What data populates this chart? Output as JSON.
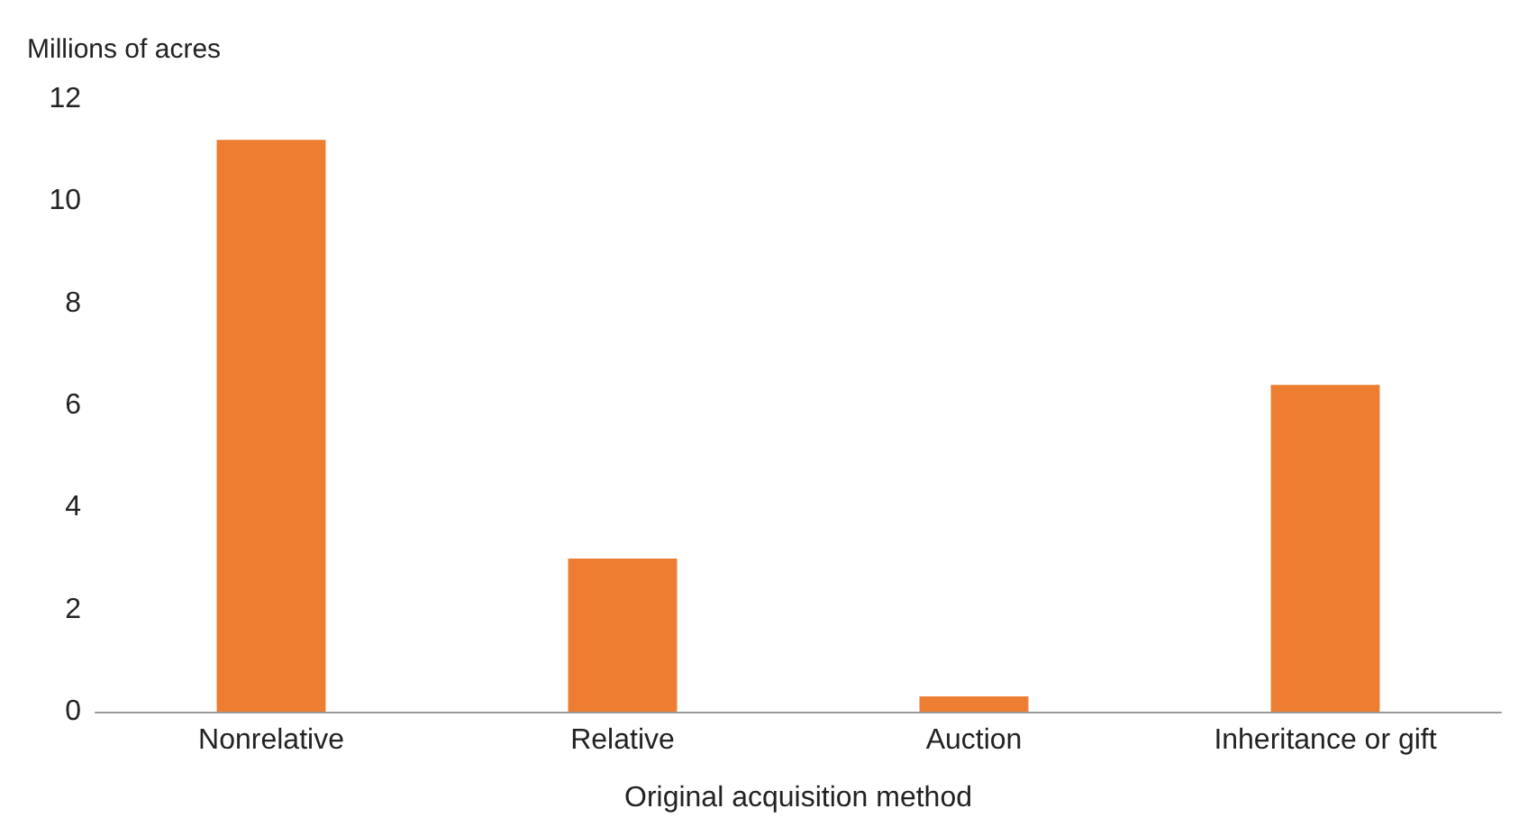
{
  "chart_data": {
    "type": "bar",
    "ylabel": "Millions of acres",
    "xlabel": "Original acquisition method",
    "categories": [
      "Nonrelative",
      "Relative",
      "Auction",
      "Inheritance or gift"
    ],
    "values": [
      11.2,
      3.0,
      0.3,
      6.4
    ],
    "color": "#ed7d31",
    "ylim": [
      0,
      12
    ],
    "yticks": [
      0,
      2,
      4,
      6,
      8,
      10,
      12
    ],
    "grid": false
  }
}
